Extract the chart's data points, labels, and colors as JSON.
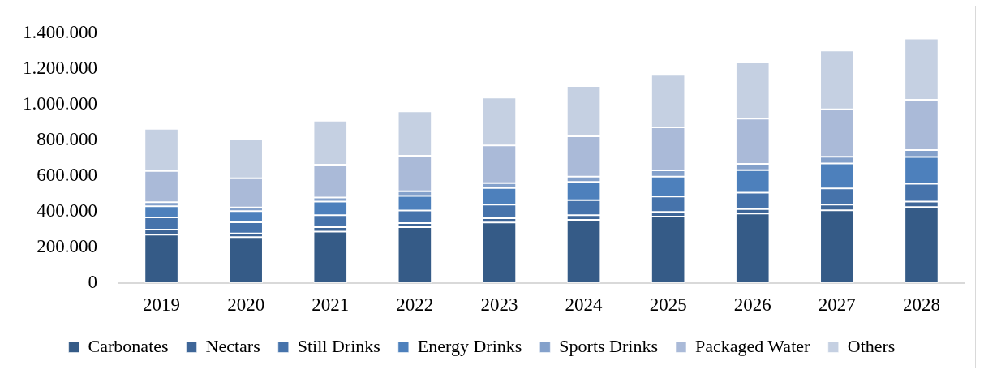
{
  "chart_data": {
    "type": "bar",
    "stacked": true,
    "legend": "bottom",
    "categories": [
      "2019",
      "2020",
      "2021",
      "2022",
      "2023",
      "2024",
      "2025",
      "2026",
      "2027",
      "2028"
    ],
    "ylim": [
      0,
      1400000
    ],
    "yticks": [
      0,
      {
        "value": 200000,
        "label": "200.000"
      },
      {
        "value": 400000,
        "label": "400.000"
      },
      {
        "value": 600000,
        "label": "600.000"
      },
      {
        "value": 800000,
        "label": "800.000"
      },
      {
        "value": 1000000,
        "label": "1.000.000"
      },
      {
        "value": 1200000,
        "label": "1.200.000"
      },
      {
        "value": 1400000,
        "label": "1.400.000"
      }
    ],
    "series": [
      {
        "name": "Carbonates",
        "color": "#355b87",
        "values": [
          271000,
          258000,
          289000,
          313000,
          340000,
          354000,
          372000,
          390000,
          408000,
          426000
        ]
      },
      {
        "name": "Nectars",
        "color": "#3e6698",
        "values": [
          29000,
          20000,
          24000,
          23000,
          23000,
          27000,
          27000,
          25000,
          32000,
          30000
        ]
      },
      {
        "name": "Still Drinks",
        "color": "#4673ab",
        "values": [
          68000,
          63000,
          68000,
          71000,
          77000,
          83000,
          86000,
          92000,
          90000,
          101000
        ]
      },
      {
        "name": "Energy Drinks",
        "color": "#4d80bc",
        "values": [
          62000,
          62000,
          75000,
          81000,
          93000,
          103000,
          111000,
          125000,
          140000,
          149000
        ]
      },
      {
        "name": "Sports Drinks",
        "color": "#84a1cb",
        "values": [
          23000,
          21000,
          23000,
          26000,
          27000,
          29000,
          35000,
          36000,
          38000,
          39000
        ]
      },
      {
        "name": "Packaged Water",
        "color": "#aabad8",
        "values": [
          175000,
          163000,
          184000,
          199000,
          211000,
          226000,
          241000,
          253000,
          265000,
          282000
        ]
      },
      {
        "name": "Others",
        "color": "#c5d0e2",
        "values": [
          236000,
          222000,
          247000,
          249000,
          268000,
          282000,
          294000,
          314000,
          330000,
          342000
        ]
      }
    ]
  }
}
